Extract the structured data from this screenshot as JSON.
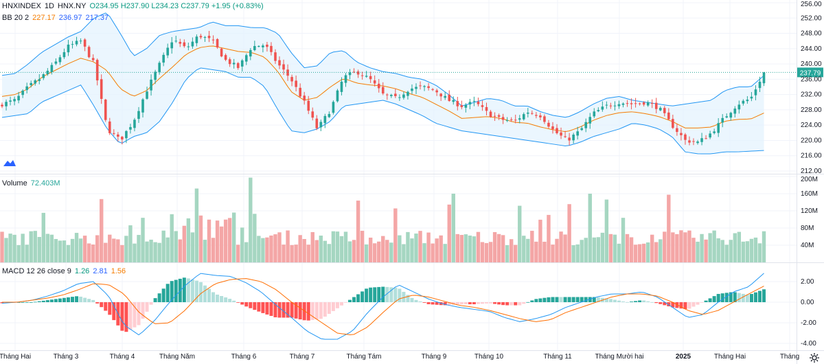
{
  "header": {
    "symbol": "HNXINDEX",
    "interval": "1D",
    "exchange": "HNX.NY",
    "ohlc": "O234.95 H237.90 L234.23 C237.79 +1.95 (+0.83%)",
    "bb_label": "BB 20 2",
    "bb_basis": "227.17",
    "bb_upper": "236.97",
    "bb_lower": "217.37",
    "volume_label": "Volume",
    "volume_value": "72.403M",
    "macd_label": "MACD 12 26 close 9",
    "macd_hist": "1.26",
    "macd_line": "2.81",
    "macd_signal": "1.56"
  },
  "price_tag": "237.79",
  "colors": {
    "up": "#26a69a",
    "down": "#ef5350",
    "bb_band": "#2196f3",
    "bb_basis": "#f57c00",
    "bb_fill": "#e3f2fd",
    "macd_line": "#2196f3",
    "macd_signal": "#ff6d00",
    "grid": "#f0f3fa",
    "axis_text": "#131722"
  },
  "icons": [
    "tradingview-logo-icon",
    "settings-gear-icon"
  ],
  "chart_data": [
    {
      "type": "candlestick",
      "title": "HNXINDEX",
      "ylim": [
        212,
        256
      ],
      "yticks": [
        "256.00",
        "252.00",
        "248.00",
        "244.00",
        "240.00",
        "236.00",
        "232.00",
        "228.00",
        "224.00",
        "220.00",
        "216.00",
        "212.00"
      ],
      "xticks": [
        "Tháng Hai",
        "Tháng 3",
        "Tháng 4",
        "Tháng Năm",
        "Tháng 6",
        "Tháng 7",
        "Tháng Tám",
        "Tháng 9",
        "Tháng 10",
        "Tháng 11",
        "Tháng Mười hai",
        "2025",
        "Tháng Hai",
        "Tháng"
      ],
      "close_anchors": [
        229.5,
        230.5,
        234,
        236.5,
        240,
        244.5,
        246,
        240,
        223,
        220,
        225,
        233,
        240,
        246.5,
        244,
        247.5,
        246,
        241,
        239,
        244.5,
        245,
        240,
        236,
        230,
        223,
        228,
        236.5,
        238,
        236,
        232,
        231,
        233.5,
        234,
        233,
        230.5,
        229,
        230,
        227,
        225.5,
        225,
        227.5,
        226.5,
        222.5,
        220,
        222.5,
        227,
        229,
        230,
        229.5,
        230,
        228.5,
        224,
        220,
        219.5,
        222,
        226,
        229.5,
        231,
        237.79
      ],
      "bb_upper_anchors": [
        237,
        237.5,
        240,
        243,
        245,
        247,
        248.5,
        252,
        253.5,
        248,
        242,
        244,
        247.5,
        248.5,
        249,
        249.5,
        251,
        250,
        250,
        249.5,
        249.5,
        248,
        243,
        239,
        239.5,
        243,
        243.5,
        240.5,
        239,
        238,
        237.5,
        236.5,
        236,
        234.5,
        232,
        229,
        230,
        231,
        230.5,
        229,
        229,
        227.5,
        226.5,
        226,
        227.5,
        229.5,
        231,
        231.5,
        230.5,
        230,
        229.5,
        229,
        229.5,
        230,
        230.5,
        233,
        234,
        234,
        236.97
      ],
      "bb_lower_anchors": [
        226,
        226.5,
        227,
        230,
        231.5,
        233,
        234.5,
        229,
        223,
        219,
        221,
        222,
        225,
        230,
        236,
        239,
        238.5,
        238,
        236.5,
        236.5,
        234,
        228,
        222.5,
        222,
        223,
        225,
        229,
        229.5,
        230,
        230.5,
        229.5,
        228,
        226.5,
        224.5,
        223.5,
        222.5,
        222,
        221.5,
        221,
        220.5,
        220,
        219.5,
        219,
        218.5,
        219.5,
        221,
        222,
        223,
        224.5,
        224,
        223,
        221,
        217,
        216.5,
        216.5,
        217,
        217,
        217.2,
        217.37
      ],
      "macd_anchors": [
        -0.1,
        0,
        0.2,
        0.6,
        1.1,
        1.8,
        2.0,
        0.6,
        -2.2,
        -3.2,
        -1.8,
        0,
        1.6,
        2.8,
        2.6,
        2.5,
        1.9,
        1.0,
        -0.3,
        -1.5,
        -2.8,
        -3.6,
        -3.6,
        -2.8,
        -1.0,
        0.5,
        1.7,
        1.0,
        0.3,
        -0.2,
        -0.5,
        -0.7,
        -0.9,
        -1.5,
        -1.9,
        -1.6,
        -1.2,
        -0.5,
        0,
        0.5,
        0.8,
        0.8,
        1.0,
        0.5,
        -0.5,
        -1.5,
        -1.2,
        0,
        1.0,
        1.5,
        2.81
      ],
      "macd_signal_anchors": [
        0,
        0,
        0.2,
        0.4,
        0.7,
        1.2,
        1.8,
        1.7,
        0.8,
        -1.0,
        -2.1,
        -2.0,
        -0.8,
        0.8,
        1.8,
        2.2,
        2.3,
        2.0,
        1.2,
        0,
        -1.0,
        -2.0,
        -3.0,
        -3.2,
        -2.4,
        -1.0,
        0.3,
        0.7,
        0.5,
        0.1,
        -0.3,
        -0.5,
        -0.8,
        -1.2,
        -1.6,
        -1.9,
        -1.7,
        -1.0,
        -0.5,
        0,
        0.5,
        0.8,
        0.8,
        0.6,
        0,
        -0.8,
        -1.2,
        -0.8,
        0,
        0.8,
        1.56
      ],
      "price_axis_ticks": [
        256,
        252,
        248,
        244,
        240,
        236,
        232,
        228,
        224,
        220,
        216,
        212
      ]
    },
    {
      "type": "bar",
      "title": "Volume",
      "yticks": [
        "200M",
        "160M",
        "120M",
        "80M",
        "40M"
      ],
      "ylim": [
        0,
        200
      ],
      "last_value": 72.403
    },
    {
      "type": "macd",
      "title": "MACD 12 26 close 9",
      "yticks": [
        "2.00",
        "0.00",
        "-2.00",
        "-4.00"
      ],
      "ylim": [
        -5,
        3
      ],
      "last_hist": 1.26,
      "last_macd": 2.81,
      "last_signal": 1.56
    }
  ]
}
